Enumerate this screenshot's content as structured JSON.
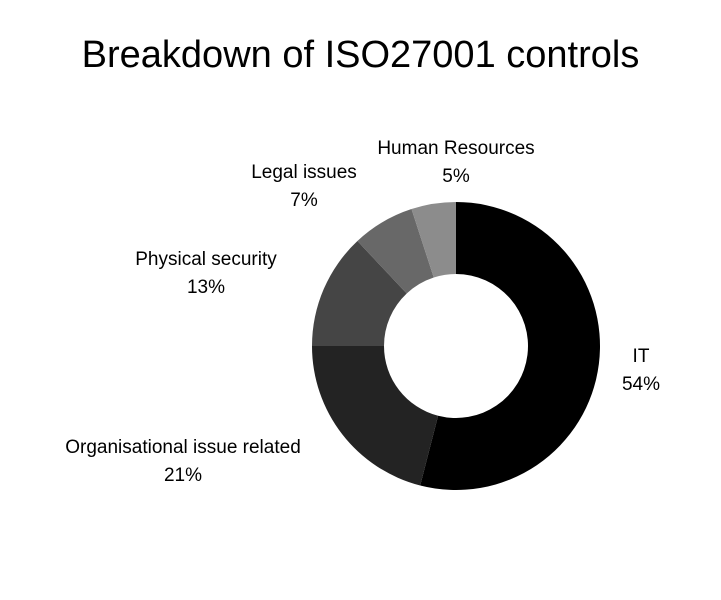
{
  "chart_data": {
    "type": "pie",
    "title": "Breakdown of ISO27001 controls",
    "donut": true,
    "slices": [
      {
        "label": "IT",
        "value": 54,
        "value_label": "54%",
        "color": "#000000"
      },
      {
        "label": "Organisational issue related",
        "value": 21,
        "value_label": "21%",
        "color": "#232323"
      },
      {
        "label": "Physical security",
        "value": 13,
        "value_label": "13%",
        "color": "#454545"
      },
      {
        "label": "Legal issues",
        "value": 7,
        "value_label": "7%",
        "color": "#686868"
      },
      {
        "label": "Human Resources",
        "value": 5,
        "value_label": "5%",
        "color": "#8c8c8c"
      }
    ]
  }
}
